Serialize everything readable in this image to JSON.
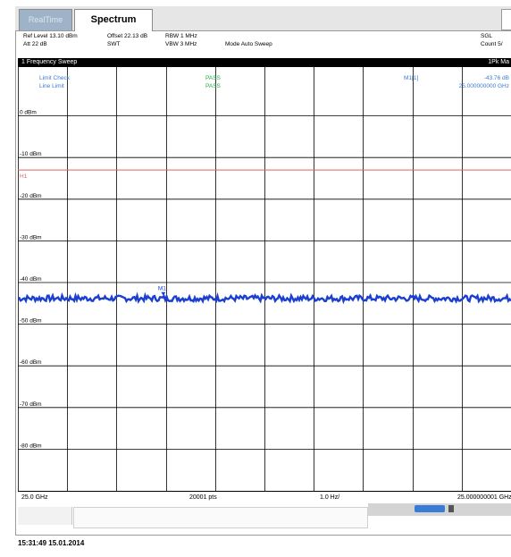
{
  "tabs": [
    {
      "label": "RealTime",
      "active": false
    },
    {
      "label": "Spectrum",
      "active": true
    }
  ],
  "header": {
    "ref_level": "Ref Level 13.10 dBm",
    "offset": "Offset 22.13 dB",
    "rbw": "RBW 1 MHz",
    "att": "Att 22 dB",
    "swt": "SWT",
    "vbw": "VBW 3 MHz",
    "mode": "Mode Auto Sweep",
    "sgl": "SGL",
    "count": "Count 5/"
  },
  "sweep_bar": {
    "label": "1 Frequency Sweep",
    "right_text": "1Pk Ma"
  },
  "limit_check": {
    "row1_label": "Limit Check",
    "row1_status": "PASS",
    "row2_label": "Line Limit",
    "row2_status": "PASS"
  },
  "marker": {
    "name": "M1[1]",
    "level": "-43.76 dB",
    "freq": "25.000000000 GHz",
    "tag": "M1"
  },
  "h1_label": "H1",
  "colors": {
    "trace": "#1a3fd1",
    "limit_line": "#e06060",
    "grid": "#000000",
    "sweep_bar": "#000000"
  },
  "chart_data": {
    "type": "line",
    "title": "",
    "y_tick_labels": [
      "0 dBm",
      "-10 dBm",
      "-20 dBm",
      "-30 dBm",
      "-40 dBm",
      "-50 dBm",
      "-60 dBm",
      "-70 dBm",
      "-80 dBm"
    ],
    "ylim": [
      -90,
      10
    ],
    "xlim_label_left": "25.0 GHz",
    "xlim_label_center": "20001 pts",
    "xlim_label_span": "1.0 Hz/",
    "xlim_label_right": "25.000000001 GHz",
    "limit_line_dBm": -13,
    "series": [
      {
        "noise_floor_dBm": -43.8,
        "peak_dBm": -43.8
      }
    ],
    "grid": true
  },
  "timestamp": "15:31:49 15.01.2014"
}
